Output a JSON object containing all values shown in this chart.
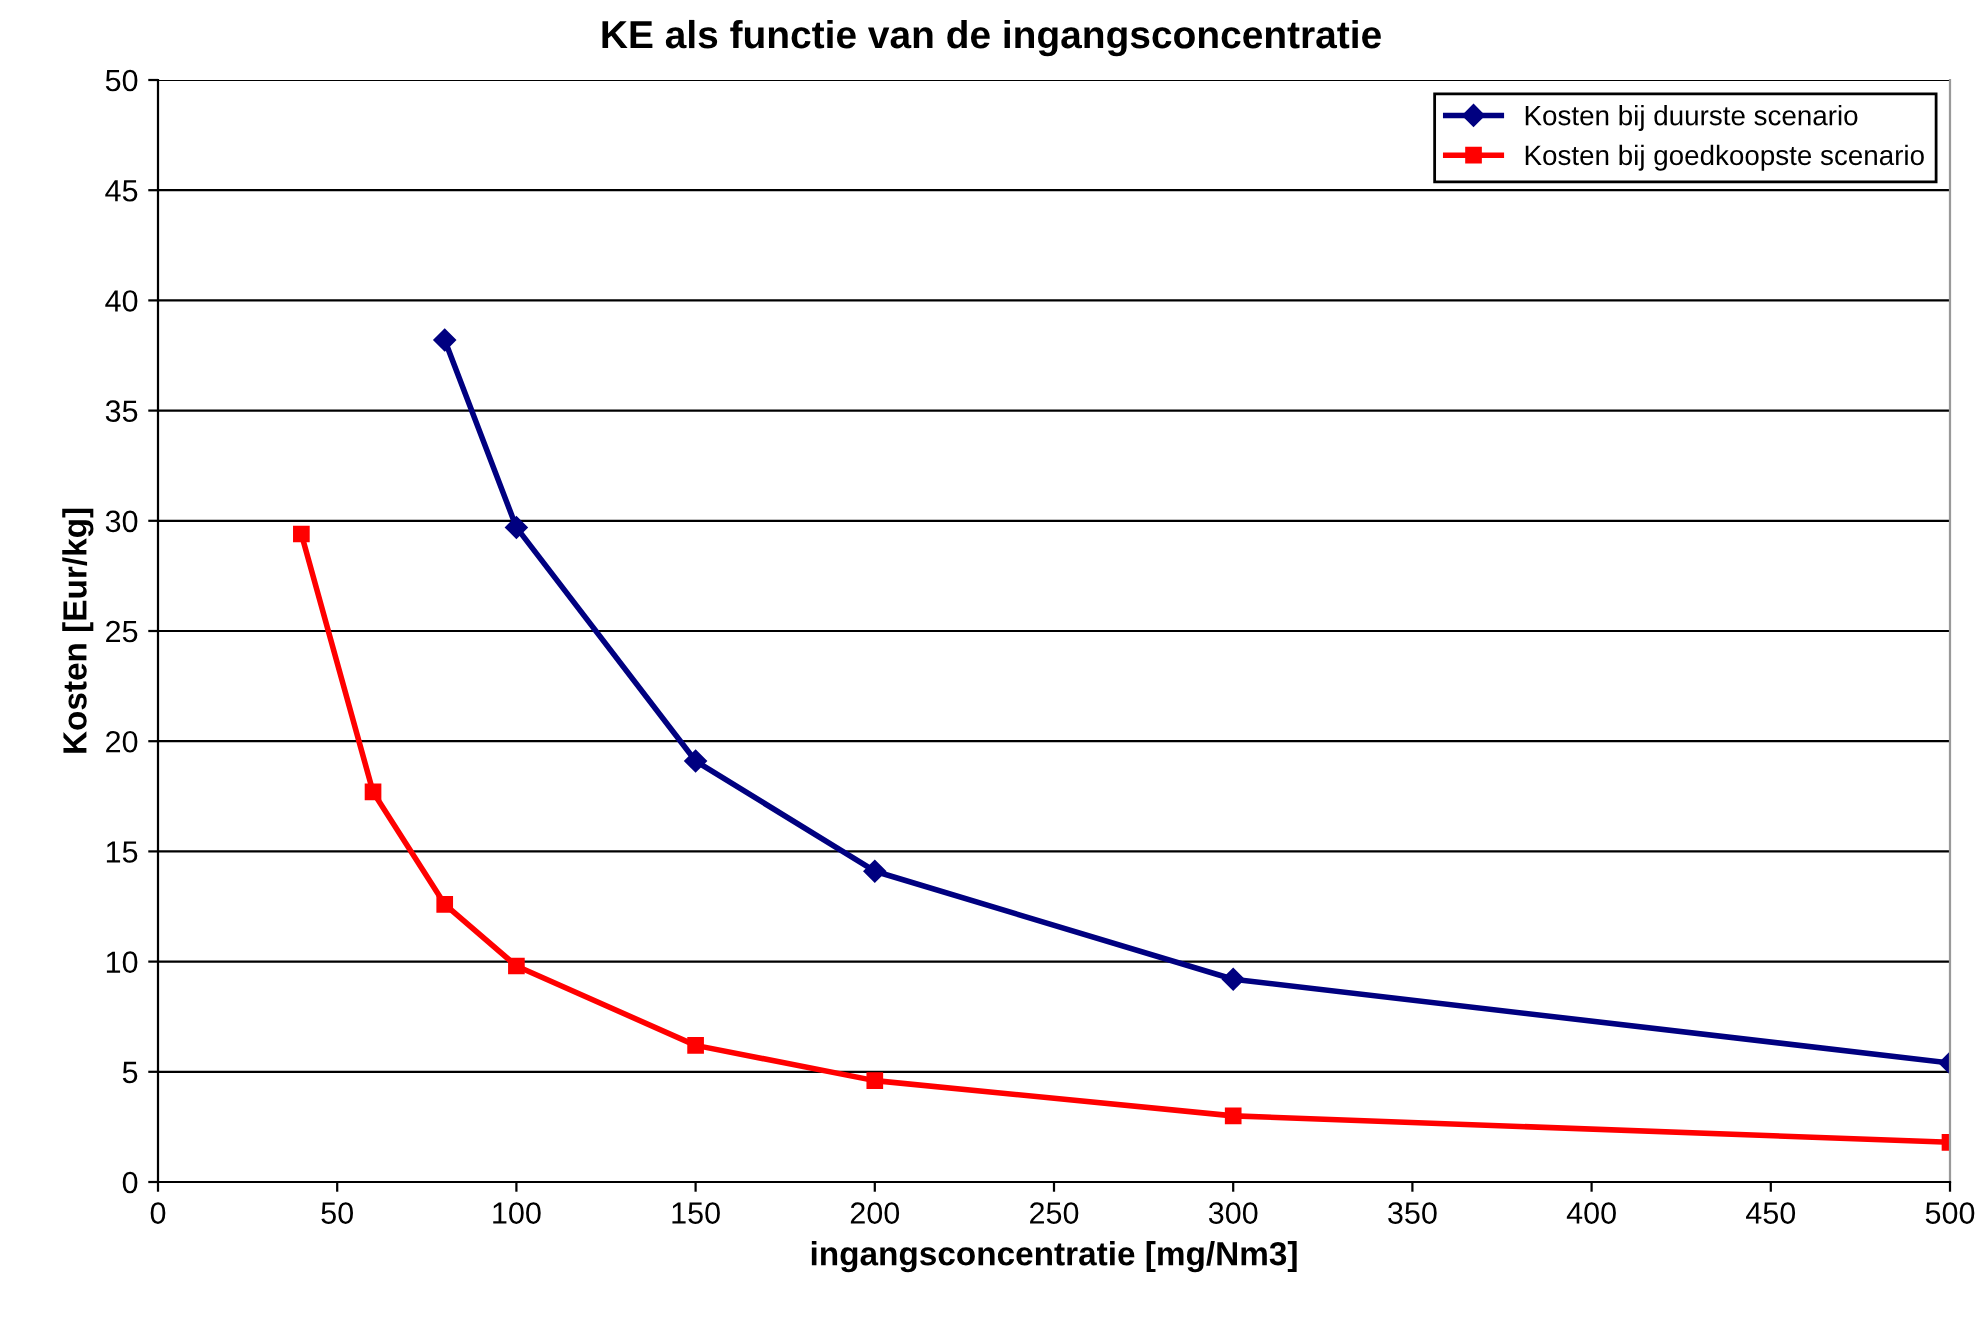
{
  "chart_data": {
    "type": "line",
    "title": "KE als functie van de ingangsconcentratie",
    "xlabel": "ingangsconcentratie [mg/Nm3]",
    "ylabel": "Kosten [Eur/kg]",
    "series": [
      {
        "name": "Kosten bij duurste scenario",
        "color": "#000080",
        "marker": "diamond",
        "x": [
          80,
          100,
          150,
          200,
          300,
          500
        ],
        "values": [
          38.2,
          29.7,
          19.1,
          14.1,
          9.2,
          5.4
        ]
      },
      {
        "name": "Kosten bij goedkoopste scenario",
        "color": "#ff0000",
        "marker": "square",
        "x": [
          40,
          60,
          80,
          100,
          150,
          200,
          300,
          500
        ],
        "values": [
          29.4,
          17.7,
          12.6,
          9.8,
          6.2,
          4.6,
          3.0,
          1.8
        ]
      }
    ],
    "xlim": [
      0,
      500
    ],
    "xticks": [
      0,
      50,
      100,
      150,
      200,
      250,
      300,
      350,
      400,
      450,
      500
    ],
    "ylim": [
      0,
      50
    ],
    "yticks": [
      0,
      5,
      10,
      15,
      20,
      25,
      30,
      35,
      40,
      45,
      50
    ],
    "grid": "y",
    "legend": "top right",
    "line_style": "solid"
  }
}
